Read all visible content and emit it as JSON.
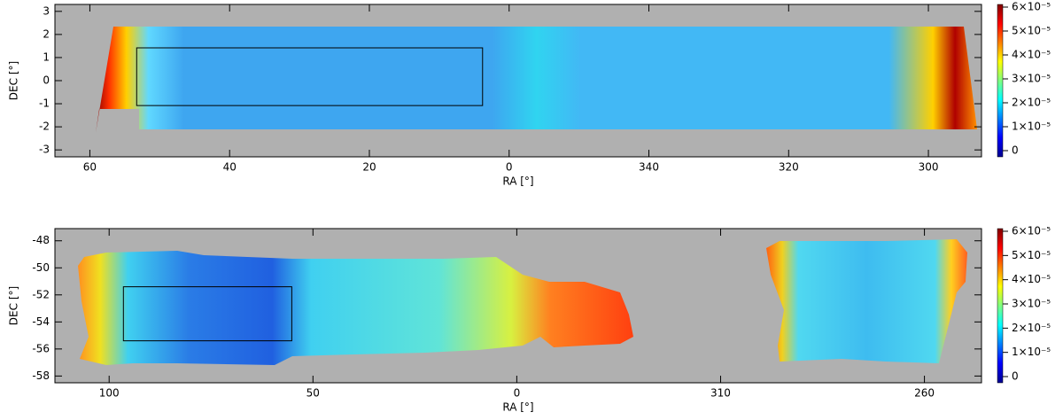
{
  "chart_data": [
    {
      "type": "map",
      "xlabel": "RA [°]",
      "ylabel": "DEC [°]",
      "xlim": [
        65,
        -67.6
      ],
      "ylim": [
        -3.3,
        3.3
      ],
      "xticks": [
        60,
        40,
        20,
        0,
        {
          "value": -20,
          "label": "340"
        },
        {
          "value": -40,
          "label": "320"
        },
        {
          "value": -60,
          "label": "300"
        }
      ],
      "yticks": [
        -3,
        -2,
        -1,
        0,
        1,
        2,
        3
      ],
      "box": {
        "x": [
          53.3,
          3.8
        ],
        "y": [
          -1.08,
          1.42
        ]
      },
      "colorbar": {
        "lim": [
          0,
          6e-05
        ],
        "ticks": [
          0,
          {
            "value": 1e-05,
            "label": "1×10⁻⁵"
          },
          {
            "value": 2e-05,
            "label": "2×10⁻⁵"
          },
          {
            "value": 3e-05,
            "label": "3×10⁻⁵"
          },
          {
            "value": 4e-05,
            "label": "4×10⁻⁵"
          },
          {
            "value": 5e-05,
            "label": "5×10⁻⁵"
          },
          {
            "value": 6e-05,
            "label": "6×10⁻⁵"
          }
        ]
      }
    },
    {
      "type": "map",
      "xlabel": "RA [°]",
      "ylabel": "DEC [°]",
      "xlim": [
        113.3,
        -114
      ],
      "ylim": [
        -58.5,
        -47.1
      ],
      "xticks": [
        100,
        50,
        0,
        {
          "value": -50,
          "label": "310"
        },
        {
          "value": -100,
          "label": "260"
        }
      ],
      "yticks": [
        -58,
        -56,
        -54,
        -52,
        -50,
        -48
      ],
      "box": {
        "x": [
          96.5,
          55.2
        ],
        "y": [
          -51.4,
          -55.4
        ]
      },
      "colorbar": {
        "lim": [
          0,
          6e-05
        ],
        "ticks": [
          0,
          {
            "value": 1e-05,
            "label": "1×10⁻⁵"
          },
          {
            "value": 2e-05,
            "label": "2×10⁻⁵"
          },
          {
            "value": 3e-05,
            "label": "3×10⁻⁵"
          },
          {
            "value": 4e-05,
            "label": "4×10⁻⁵"
          },
          {
            "value": 5e-05,
            "label": "5×10⁻⁵"
          },
          {
            "value": 6e-05,
            "label": "6×10⁻⁵"
          }
        ]
      }
    }
  ]
}
